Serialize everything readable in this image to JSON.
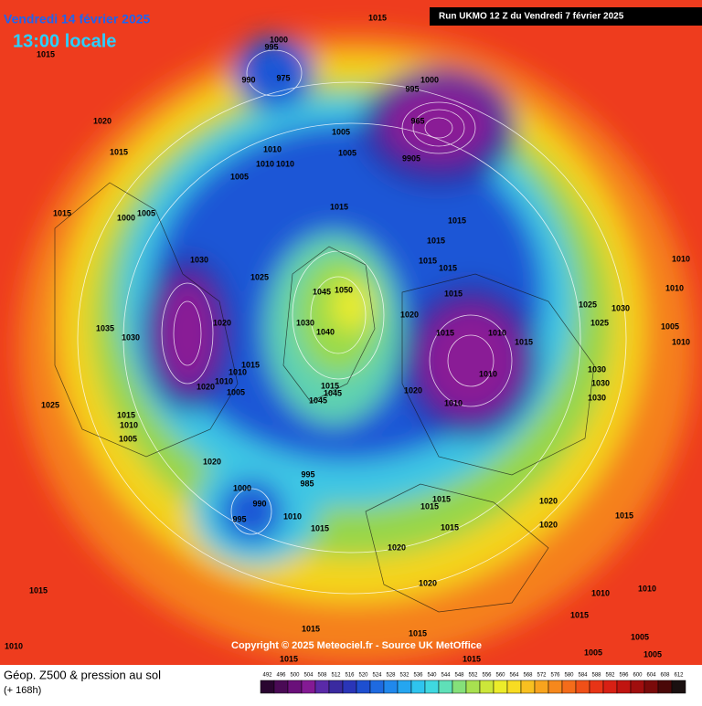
{
  "header": {
    "date": "Vendredi 14 février 2025",
    "time": "13:00 locale",
    "run": "Run UKMO 12 Z du Vendredi 7 février 2025"
  },
  "copyright": "Copyright © 2025 Meteociel.fr - Source UK MetOffice",
  "footer": {
    "title": "Géop. Z500 & pression au sol",
    "lead": "(+ 168h)"
  },
  "legend": {
    "labels": [
      492,
      496,
      500,
      504,
      508,
      512,
      516,
      520,
      524,
      528,
      532,
      536,
      540,
      544,
      548,
      552,
      556,
      560,
      564,
      568,
      572,
      576,
      580,
      584,
      588,
      592,
      596,
      600,
      604,
      608,
      612
    ],
    "colors": [
      "#2a0530",
      "#4a0a55",
      "#6a107a",
      "#841a94",
      "#5a2aa8",
      "#3a2aa0",
      "#2a35b8",
      "#1e4fd0",
      "#1e6ae0",
      "#2088ec",
      "#25a6f0",
      "#2fc4ee",
      "#3fd8e0",
      "#5fe0b8",
      "#85e07a",
      "#a8e050",
      "#cce63a",
      "#ecec2a",
      "#f8dc22",
      "#f8c020",
      "#f8a41e",
      "#f6881c",
      "#f46c1a",
      "#f05018",
      "#e83416",
      "#d82014",
      "#c01410",
      "#a00e0e",
      "#7a0a0a",
      "#4a0808",
      "#1a1010"
    ]
  },
  "isobars": [
    "1015",
    "1015",
    "1000",
    "995",
    "975",
    "990",
    "1020",
    "1015",
    "1010",
    "1010",
    "1010",
    "1005",
    "1005",
    "1005",
    "1000",
    "995",
    "965",
    "9905",
    "1015",
    "1000",
    "1005",
    "1015",
    "1015",
    "1015",
    "1015",
    "1015",
    "1030",
    "1025",
    "1045",
    "1050",
    "1020",
    "1030",
    "1040",
    "1035",
    "1030",
    "1015",
    "1020",
    "1015",
    "1010",
    "1015",
    "1025",
    "1030",
    "1025",
    "1010",
    "1010",
    "1005",
    "1015",
    "1010",
    "1010",
    "1020",
    "1005",
    "1010",
    "1020",
    "1015",
    "1045",
    "1045",
    "1010",
    "1030",
    "1030",
    "1030",
    "1025",
    "1015",
    "1010",
    "1005",
    "1020",
    "1000",
    "995",
    "985",
    "990",
    "995",
    "1010",
    "1015",
    "1015",
    "1015",
    "1020",
    "1020",
    "1015",
    "1015",
    "1020",
    "1020",
    "1010",
    "1010",
    "1015",
    "1015",
    "1005",
    "1005",
    "1005",
    "1015",
    "1015",
    "1015",
    "1015",
    "1010",
    "1010"
  ]
}
